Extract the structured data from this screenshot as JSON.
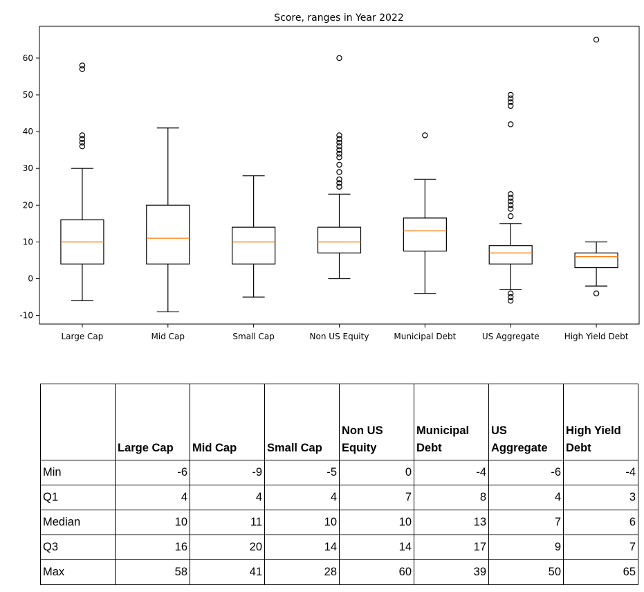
{
  "chart_data": {
    "type": "box",
    "title": "Score, ranges in Year 2022",
    "ylim": [
      -12,
      68
    ],
    "yticks": [
      -10,
      0,
      10,
      20,
      30,
      40,
      50,
      60
    ],
    "categories": [
      "Large Cap",
      "Mid Cap",
      "Small Cap",
      "Non US Equity",
      "Municipal Debt",
      "US Aggregate",
      "High Yield Debt"
    ],
    "boxes": [
      {
        "q1": 4,
        "median": 10,
        "q3": 16,
        "whisker_low": -6,
        "whisker_high": 30,
        "outliers": [
          36,
          37,
          38,
          39,
          57,
          58
        ]
      },
      {
        "q1": 4,
        "median": 11,
        "q3": 20,
        "whisker_low": -9,
        "whisker_high": 41,
        "outliers": []
      },
      {
        "q1": 4,
        "median": 10,
        "q3": 14,
        "whisker_low": -5,
        "whisker_high": 28,
        "outliers": []
      },
      {
        "q1": 7,
        "median": 10,
        "q3": 14,
        "whisker_low": 0,
        "whisker_high": 23,
        "outliers": [
          25,
          26,
          27,
          29,
          31,
          33,
          34,
          35,
          36,
          37,
          38,
          39,
          60
        ]
      },
      {
        "q1": 7.5,
        "median": 13,
        "q3": 16.5,
        "whisker_low": -4,
        "whisker_high": 27,
        "outliers": [
          39
        ]
      },
      {
        "q1": 4,
        "median": 7,
        "q3": 9,
        "whisker_low": -3,
        "whisker_high": 15,
        "outliers": [
          -6,
          -5,
          -4,
          17,
          19,
          20,
          21,
          22,
          23,
          42,
          47,
          48,
          49,
          50
        ]
      },
      {
        "q1": 3,
        "median": 6,
        "q3": 7,
        "whisker_low": -2,
        "whisker_high": 10,
        "outliers": [
          -4,
          65
        ]
      }
    ],
    "colors": {
      "box": "#000000",
      "median": "#ff7f0e",
      "outlier": "#000000"
    }
  },
  "table": {
    "headers": [
      [
        "Large Cap"
      ],
      [
        "Mid Cap"
      ],
      [
        "Small Cap"
      ],
      [
        "Non US",
        "Equity"
      ],
      [
        "Municipal",
        "Debt"
      ],
      [
        "US",
        "Aggregate"
      ],
      [
        "High Yield",
        "Debt"
      ]
    ],
    "rows": [
      {
        "label": "Min",
        "values": [
          "-6",
          "-9",
          "-5",
          "0",
          "-4",
          "-6",
          "-4"
        ]
      },
      {
        "label": "Q1",
        "values": [
          "4",
          "4",
          "4",
          "7",
          "8",
          "4",
          "3"
        ]
      },
      {
        "label": "Median",
        "values": [
          "10",
          "11",
          "10",
          "10",
          "13",
          "7",
          "6"
        ]
      },
      {
        "label": "Q3",
        "values": [
          "16",
          "20",
          "14",
          "14",
          "17",
          "9",
          "7"
        ]
      },
      {
        "label": "Max",
        "values": [
          "58",
          "41",
          "28",
          "60",
          "39",
          "50",
          "65"
        ]
      }
    ]
  }
}
